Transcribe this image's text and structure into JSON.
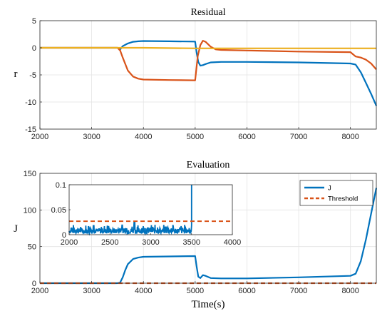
{
  "chart_data": [
    {
      "type": "line",
      "title": "Residual",
      "xlabel": "",
      "ylabel": "r",
      "xlim": [
        2000,
        8500
      ],
      "ylim": [
        -15,
        5
      ],
      "xticks": [
        2000,
        3000,
        4000,
        5000,
        6000,
        7000,
        8000
      ],
      "yticks": [
        -15,
        -10,
        -5,
        0,
        5
      ],
      "grid": true,
      "colors": [
        "#0072BD",
        "#D95319",
        "#EDB120"
      ],
      "series": [
        {
          "x": [
            2000,
            3500,
            3550,
            3600,
            3700,
            3800,
            3900,
            4000,
            4500,
            5000,
            5030,
            5060,
            5100,
            5150,
            5200,
            5300,
            5500,
            6000,
            7000,
            8000,
            8100,
            8200,
            8300,
            8400,
            8500
          ],
          "y": [
            0,
            0,
            -0.3,
            0.3,
            0.8,
            1.1,
            1.2,
            1.25,
            1.2,
            1.15,
            -1,
            -2.6,
            -3.3,
            -3.2,
            -3.0,
            -2.7,
            -2.6,
            -2.6,
            -2.7,
            -2.9,
            -3.1,
            -4.5,
            -6.5,
            -8.5,
            -10.7
          ]
        },
        {
          "x": [
            2000,
            3500,
            3550,
            3600,
            3700,
            3800,
            3900,
            4000,
            4500,
            5000,
            5050,
            5100,
            5150,
            5200,
            5300,
            5400,
            5500,
            6000,
            7000,
            8000,
            8050,
            8100,
            8200,
            8300,
            8400,
            8500
          ],
          "y": [
            0,
            0,
            -0.5,
            -1.8,
            -4.2,
            -5.3,
            -5.7,
            -5.85,
            -5.95,
            -6.0,
            -1.5,
            0.5,
            1.3,
            1.1,
            0.2,
            -0.3,
            -0.4,
            -0.5,
            -0.7,
            -0.8,
            -1.2,
            -1.6,
            -1.8,
            -2.2,
            -2.9,
            -4.0
          ]
        },
        {
          "x": [
            2000,
            3000,
            4000,
            5000,
            6000,
            7000,
            8000,
            8500
          ],
          "y": [
            0,
            0,
            0,
            -0.1,
            -0.1,
            -0.1,
            -0.1,
            -0.1
          ]
        }
      ]
    },
    {
      "type": "line",
      "title": "Evaluation",
      "xlabel": "Time(s)",
      "ylabel": "J",
      "xlim": [
        2000,
        8500
      ],
      "ylim": [
        0,
        150
      ],
      "xticks": [
        2000,
        3000,
        4000,
        5000,
        6000,
        7000,
        8000
      ],
      "yticks": [
        0,
        50,
        100,
        150
      ],
      "grid": true,
      "legend": "top-right",
      "series": [
        {
          "name": "J",
          "color": "#0072BD",
          "x": [
            2000,
            3500,
            3550,
            3600,
            3650,
            3700,
            3800,
            3900,
            4000,
            4500,
            5000,
            5030,
            5060,
            5100,
            5150,
            5200,
            5300,
            5500,
            6000,
            7000,
            8000,
            8100,
            8200,
            8300,
            8400,
            8500
          ],
          "y": [
            0,
            0,
            1,
            8,
            18,
            26,
            33,
            35,
            36,
            36.5,
            37,
            22,
            9,
            7,
            11,
            10,
            7,
            6.5,
            6.5,
            8,
            10,
            13,
            30,
            60,
            95,
            130
          ]
        },
        {
          "name": "Threshold",
          "color": "#D95319",
          "dashed": true,
          "x": [
            2000,
            8500
          ],
          "y": [
            0.027,
            0.027
          ]
        }
      ],
      "inset": {
        "xlim": [
          2000,
          4000
        ],
        "ylim": [
          0,
          0.1
        ],
        "xticks": [
          2000,
          2500,
          3000,
          3500,
          4000
        ],
        "yticks": [
          0,
          0.05,
          0.1
        ],
        "ytick_labels": [
          "0",
          "0.05",
          "0.1"
        ],
        "threshold": 0.027,
        "spike_x": 3500,
        "spike_y": 0.1,
        "noise_range": [
          0.002,
          0.02
        ],
        "noise_peaks": [
          {
            "x": 2800,
            "y": 0.025
          },
          {
            "x": 2650,
            "y": 0.019
          },
          {
            "x": 2300,
            "y": 0.018
          }
        ]
      }
    }
  ]
}
